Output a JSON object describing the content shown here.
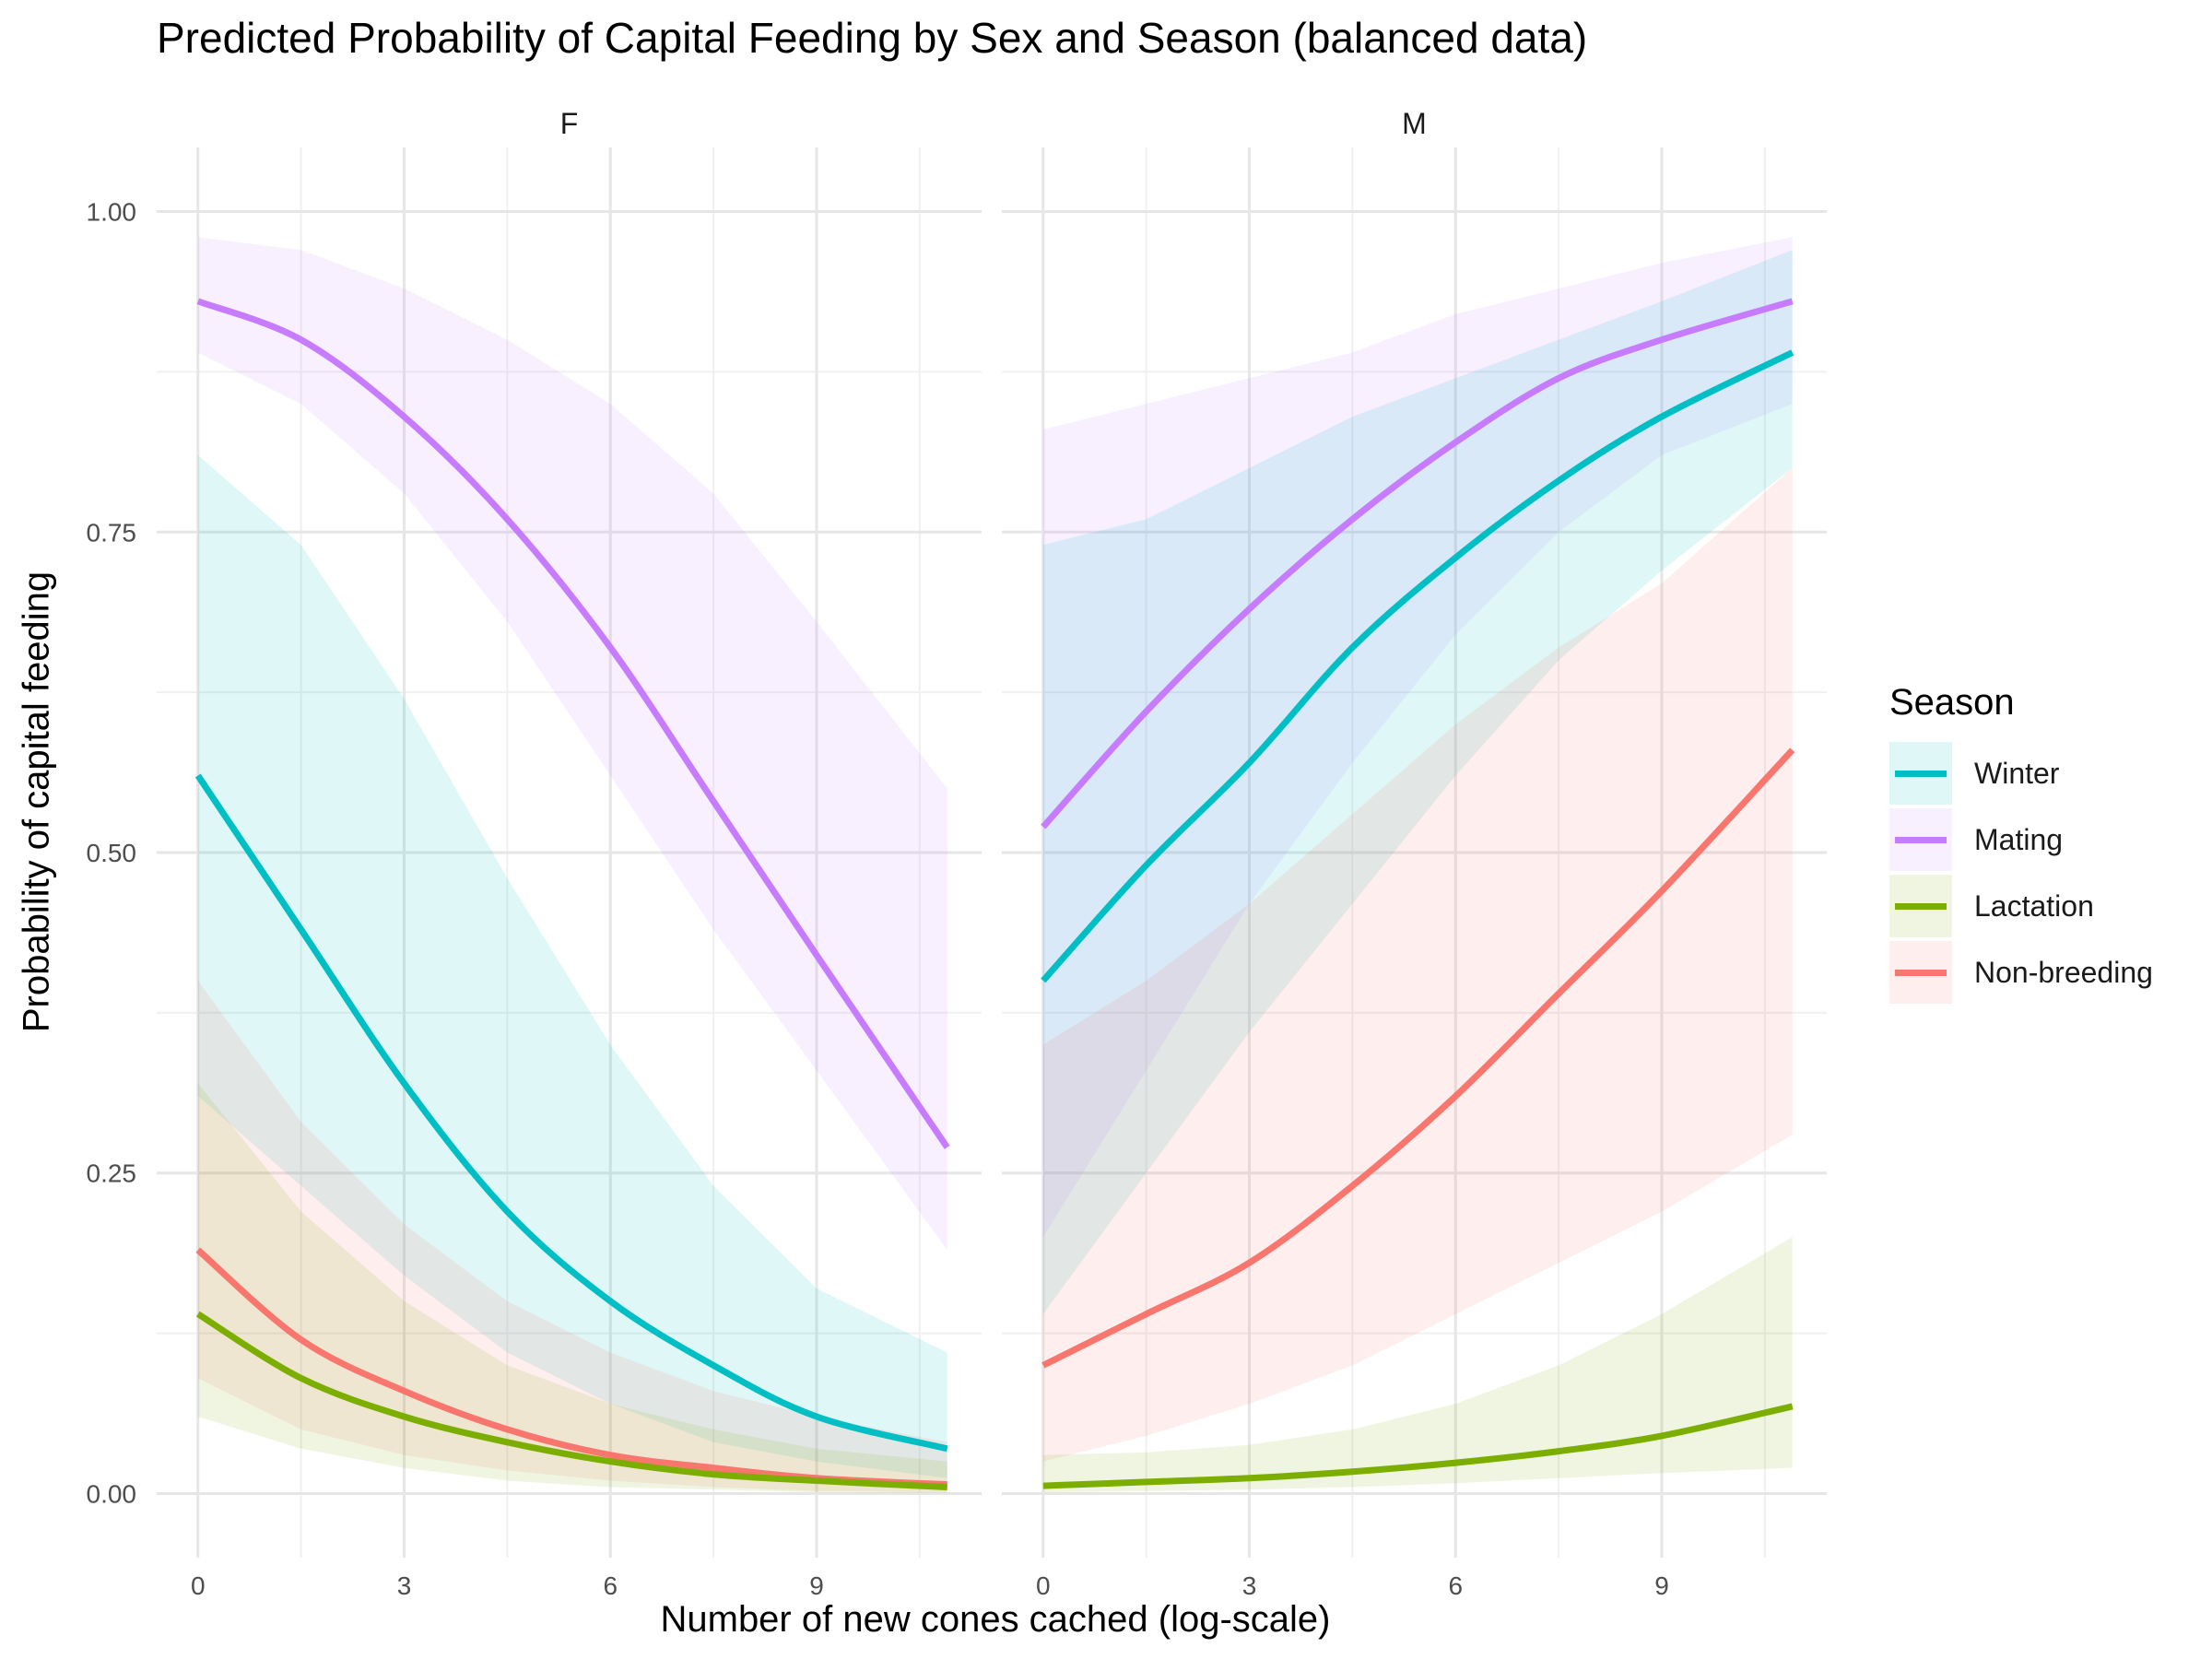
{
  "chart_data": {
    "type": "line",
    "title": "Predicted Probability of Capital Feeding by Sex and Season (balanced data)",
    "xlabel": "Number of new cones cached (log-scale)",
    "ylabel": "Probability of capital feeding",
    "xlim": [
      -0.6,
      11.4
    ],
    "ylim": [
      -0.05,
      1.05
    ],
    "x_ticks": [
      0,
      3,
      6,
      9
    ],
    "x_tick_labels": [
      "0",
      "3",
      "6",
      "9"
    ],
    "y_ticks": [
      0,
      0.25,
      0.5,
      0.75,
      1.0
    ],
    "y_tick_labels": [
      "0.00",
      "0.25",
      "0.50",
      "0.75",
      "1.00"
    ],
    "grid": true,
    "legend": {
      "title": "Season",
      "position": "right",
      "entries": [
        "Winter",
        "Mating",
        "Lactation",
        "Non-breeding"
      ]
    },
    "colors": {
      "Winter": "#00BFC4",
      "Mating": "#C77CFF",
      "Lactation": "#7CAE00",
      "Non-breeding": "#F8766D"
    },
    "panels": [
      {
        "name": "F",
        "series": [
          {
            "name": "Mating",
            "x": [
              0,
              1.5,
              3,
              4.5,
              6,
              7.5,
              9,
              10.9
            ],
            "y": [
              0.93,
              0.9,
              0.84,
              0.76,
              0.66,
              0.54,
              0.42,
              0.27
            ],
            "lower": [
              0.89,
              0.85,
              0.78,
              0.68,
              0.56,
              0.44,
              0.33,
              0.19
            ],
            "upper": [
              0.98,
              0.97,
              0.94,
              0.9,
              0.85,
              0.78,
              0.68,
              0.55
            ]
          },
          {
            "name": "Winter",
            "x": [
              0,
              1.5,
              3,
              4.5,
              6,
              7.5,
              9,
              10.9
            ],
            "y": [
              0.56,
              0.44,
              0.32,
              0.22,
              0.15,
              0.1,
              0.06,
              0.035
            ],
            "lower": [
              0.31,
              0.24,
              0.17,
              0.11,
              0.07,
              0.04,
              0.025,
              0.012
            ],
            "upper": [
              0.81,
              0.74,
              0.62,
              0.48,
              0.35,
              0.24,
              0.16,
              0.11
            ]
          },
          {
            "name": "Non-breeding",
            "x": [
              0,
              1.5,
              3,
              4.5,
              6,
              7.5,
              9,
              10.9
            ],
            "y": [
              0.19,
              0.12,
              0.08,
              0.05,
              0.03,
              0.02,
              0.012,
              0.007
            ],
            "lower": [
              0.09,
              0.05,
              0.03,
              0.018,
              0.01,
              0.005,
              0.002,
              0.001
            ],
            "upper": [
              0.4,
              0.29,
              0.21,
              0.15,
              0.11,
              0.08,
              0.06,
              0.04
            ]
          },
          {
            "name": "Lactation",
            "x": [
              0,
              1.5,
              3,
              4.5,
              6,
              7.5,
              9,
              10.9
            ],
            "y": [
              0.14,
              0.09,
              0.06,
              0.04,
              0.025,
              0.015,
              0.01,
              0.005
            ],
            "lower": [
              0.06,
              0.035,
              0.02,
              0.01,
              0.005,
              0.003,
              0.001,
              0.0005
            ],
            "upper": [
              0.32,
              0.22,
              0.15,
              0.1,
              0.07,
              0.05,
              0.035,
              0.025
            ]
          }
        ]
      },
      {
        "name": "M",
        "series": [
          {
            "name": "Mating",
            "x": [
              0,
              1.5,
              3,
              4.5,
              6,
              7.5,
              9,
              10.9
            ],
            "y": [
              0.52,
              0.61,
              0.69,
              0.76,
              0.82,
              0.87,
              0.9,
              0.93
            ],
            "lower": [
              0.2,
              0.33,
              0.46,
              0.57,
              0.67,
              0.75,
              0.81,
              0.85
            ],
            "upper": [
              0.83,
              0.85,
              0.87,
              0.89,
              0.92,
              0.94,
              0.96,
              0.98
            ]
          },
          {
            "name": "Winter",
            "x": [
              0,
              1.5,
              3,
              4.5,
              6,
              7.5,
              9,
              10.9
            ],
            "y": [
              0.4,
              0.49,
              0.57,
              0.66,
              0.73,
              0.79,
              0.84,
              0.89
            ],
            "lower": [
              0.14,
              0.25,
              0.36,
              0.46,
              0.56,
              0.65,
              0.72,
              0.8
            ],
            "upper": [
              0.74,
              0.76,
              0.8,
              0.84,
              0.87,
              0.9,
              0.93,
              0.97
            ]
          },
          {
            "name": "Non-breeding",
            "x": [
              0,
              1.5,
              3,
              4.5,
              6,
              7.5,
              9,
              10.9
            ],
            "y": [
              0.1,
              0.14,
              0.18,
              0.24,
              0.31,
              0.39,
              0.47,
              0.58
            ],
            "lower": [
              0.025,
              0.045,
              0.07,
              0.1,
              0.14,
              0.18,
              0.22,
              0.28
            ],
            "upper": [
              0.35,
              0.4,
              0.46,
              0.53,
              0.6,
              0.66,
              0.71,
              0.8
            ]
          },
          {
            "name": "Lactation",
            "x": [
              0,
              1.5,
              3,
              4.5,
              6,
              7.5,
              9,
              10.9
            ],
            "y": [
              0.006,
              0.009,
              0.012,
              0.017,
              0.024,
              0.033,
              0.045,
              0.068
            ],
            "lower": [
              0.001,
              0.002,
              0.003,
              0.005,
              0.008,
              0.012,
              0.016,
              0.02
            ],
            "upper": [
              0.03,
              0.032,
              0.038,
              0.05,
              0.07,
              0.1,
              0.14,
              0.2
            ]
          }
        ]
      }
    ]
  }
}
